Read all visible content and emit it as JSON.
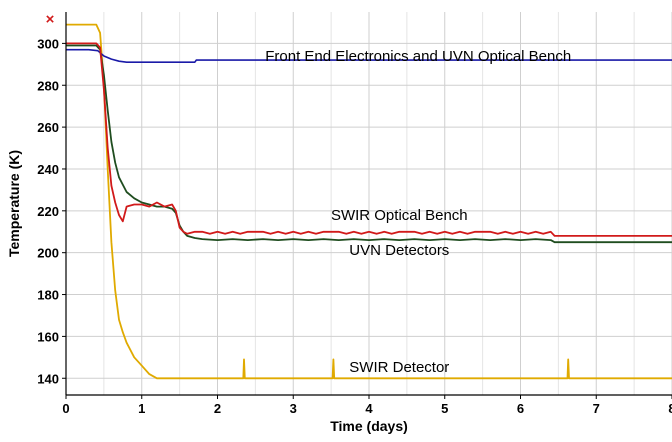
{
  "chart_data": {
    "type": "line",
    "title": "",
    "xlabel": "Time  (days)",
    "ylabel": "Temperature  (K)",
    "xlim": [
      0,
      8
    ],
    "ylim": [
      132,
      315
    ],
    "xticks": [
      0,
      1,
      2,
      3,
      4,
      5,
      6,
      7,
      8
    ],
    "yticks": [
      140,
      160,
      180,
      200,
      220,
      240,
      260,
      280,
      300
    ],
    "grid": true,
    "legend": "none",
    "marker_symbol": "×",
    "colors": {
      "front_end": "#1a1aa8",
      "swir_bench": "#d11a1a",
      "uvn_detectors": "#1f4d1f",
      "swir_detector": "#e0aa00",
      "marker": "#d11a1a"
    },
    "annotations": [
      {
        "text": "Front End Electronics and UVN Optical Bench",
        "x": 4.65,
        "y": 291.5
      },
      {
        "text": "SWIR Optical Bench",
        "x": 4.4,
        "y": 215.5
      },
      {
        "text": "UVN Detectors",
        "x": 4.4,
        "y": 199.0
      },
      {
        "text": "SWIR Detector",
        "x": 4.4,
        "y": 143.0
      }
    ],
    "series": [
      {
        "key": "front_end",
        "x": [
          0,
          0.3,
          0.42,
          0.5,
          0.6,
          0.7,
          0.8,
          1.0,
          1.3,
          1.7,
          1.72,
          2.5,
          4.0,
          5.5,
          7.0,
          8.0
        ],
        "y": [
          297,
          297,
          296.5,
          294,
          292.5,
          291.5,
          291,
          291,
          291,
          291,
          292,
          292,
          292,
          292,
          292,
          292
        ]
      },
      {
        "key": "swir_bench",
        "x": [
          0,
          0.3,
          0.4,
          0.45,
          0.5,
          0.55,
          0.6,
          0.65,
          0.7,
          0.75,
          0.8,
          0.9,
          1.0,
          1.1,
          1.2,
          1.3,
          1.4,
          1.45,
          1.5,
          1.55,
          1.6,
          1.7,
          1.8,
          1.9,
          2.0,
          2.1,
          2.2,
          2.3,
          2.4,
          2.5,
          2.6,
          2.7,
          2.8,
          2.9,
          3.0,
          3.1,
          3.2,
          3.3,
          3.4,
          3.5,
          3.6,
          3.7,
          3.8,
          3.9,
          4.0,
          4.1,
          4.2,
          4.3,
          4.4,
          4.5,
          4.6,
          4.7,
          4.8,
          4.9,
          5.0,
          5.1,
          5.2,
          5.3,
          5.4,
          5.5,
          5.6,
          5.7,
          5.8,
          5.9,
          6.0,
          6.1,
          6.2,
          6.3,
          6.4,
          6.45,
          7.0,
          8.0
        ],
        "y": [
          300,
          300,
          300,
          298,
          278,
          250,
          232,
          224,
          218,
          215,
          222,
          223,
          223,
          222,
          224,
          222,
          223,
          220,
          212,
          210,
          209,
          210,
          210,
          209,
          210,
          209,
          210,
          209,
          210,
          210,
          210,
          209,
          210,
          209,
          210,
          209,
          210,
          209,
          210,
          210,
          210,
          209,
          210,
          209,
          210,
          209,
          210,
          209,
          210,
          210,
          210,
          209,
          210,
          209,
          210,
          209,
          210,
          209,
          210,
          210,
          210,
          209,
          210,
          209,
          210,
          209,
          210,
          209,
          210,
          208,
          208,
          208
        ]
      },
      {
        "key": "uvn_detectors",
        "x": [
          0,
          0.3,
          0.4,
          0.45,
          0.5,
          0.55,
          0.6,
          0.65,
          0.7,
          0.8,
          0.9,
          1.0,
          1.1,
          1.2,
          1.3,
          1.4,
          1.45,
          1.5,
          1.55,
          1.6,
          1.7,
          1.8,
          2.0,
          2.2,
          2.4,
          2.6,
          2.8,
          3.0,
          3.2,
          3.4,
          3.6,
          3.8,
          4.0,
          4.2,
          4.4,
          4.6,
          4.8,
          5.0,
          5.2,
          5.4,
          5.6,
          5.8,
          6.0,
          6.2,
          6.4,
          6.45,
          7.0,
          8.0
        ],
        "y": [
          299,
          299,
          299,
          297,
          285,
          268,
          253,
          243,
          236,
          229,
          226,
          224,
          223,
          222,
          222,
          221,
          219,
          213,
          210,
          208,
          207,
          206.5,
          206,
          206.5,
          206,
          206.5,
          206,
          206.5,
          206,
          206.5,
          206,
          206.5,
          206,
          206.5,
          206,
          206.5,
          206,
          206.5,
          206,
          206.5,
          206,
          206.5,
          206,
          206.5,
          206,
          205,
          205,
          205
        ]
      },
      {
        "key": "swir_detector",
        "x": [
          0,
          0.35,
          0.4,
          0.45,
          0.5,
          0.55,
          0.6,
          0.65,
          0.7,
          0.75,
          0.8,
          0.9,
          1.0,
          1.1,
          1.2,
          1.5,
          2.0,
          2.34,
          2.35,
          2.36,
          3.5,
          3.52,
          3.53,
          3.54,
          4.5,
          5.5,
          6.6,
          6.62,
          6.63,
          6.64,
          7.0,
          8.0
        ],
        "y": [
          309,
          309,
          309,
          305,
          280,
          240,
          205,
          182,
          168,
          162,
          157,
          150,
          146,
          142,
          140,
          140,
          140,
          140,
          149,
          140,
          140,
          140,
          149,
          140,
          140,
          140,
          140,
          140,
          149,
          140,
          140,
          140
        ]
      }
    ],
    "marker_point": {
      "x": -0.2,
      "y": 313
    }
  }
}
